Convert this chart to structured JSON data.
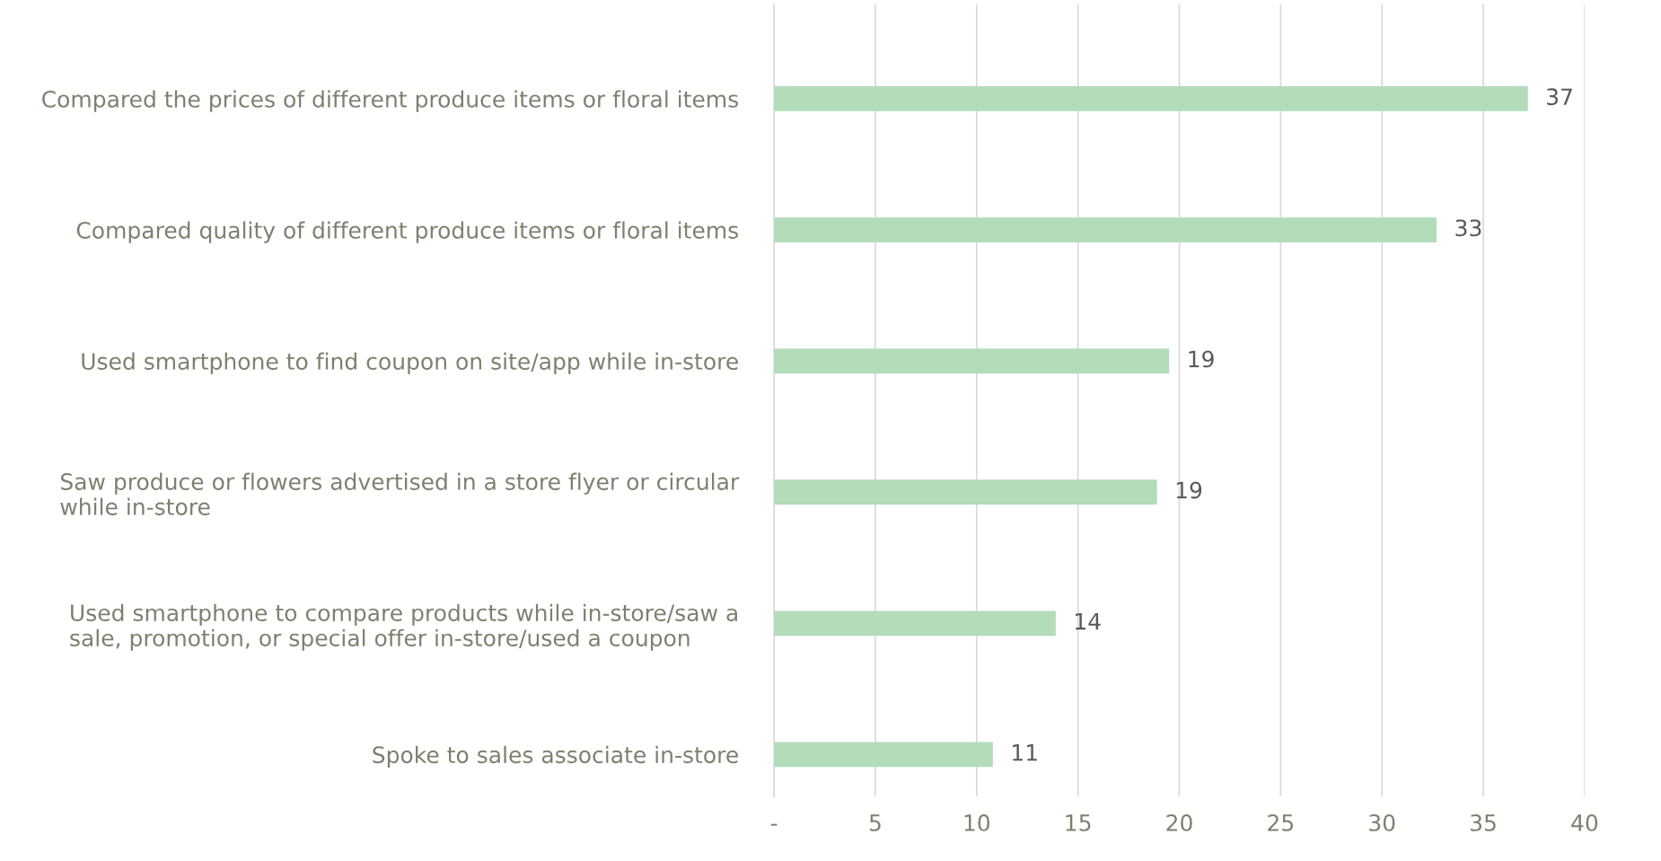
{
  "chart_data": {
    "type": "bar",
    "orientation": "horizontal",
    "categories": [
      "Compared the prices of different produce items or floral items",
      "Compared quality of different produce items or floral items",
      "Used smartphone to find coupon on site/app while in-store",
      "Saw produce or flowers advertised in a store flyer or circular\nwhile in-store",
      "Used smartphone to compare products while in-store/saw a\nsale, promotion, or special offer in-store/used a coupon",
      "Spoke to sales associate in-store"
    ],
    "values": [
      37.2,
      32.7,
      19.5,
      18.9,
      13.9,
      10.8
    ],
    "value_labels": [
      "37",
      "33",
      "19",
      "19",
      "14",
      "11"
    ],
    "color": "#b3dcba",
    "xlim": [
      0,
      40
    ],
    "xticks": [
      {
        "value": 0,
        "label": "-"
      },
      5,
      10,
      15,
      20,
      25,
      30,
      35,
      40
    ],
    "grid": "x"
  }
}
